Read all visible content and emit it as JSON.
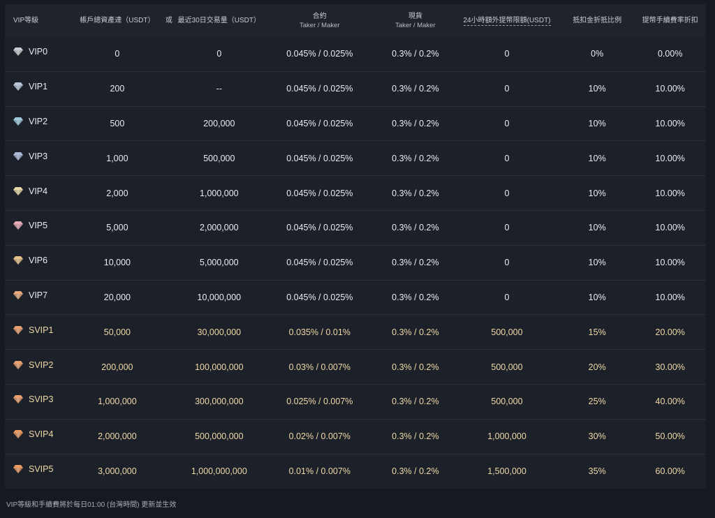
{
  "headers": {
    "level": "VIP等級",
    "assets": "帳戶總資產達（USDT）",
    "or": "或",
    "volume": "最近30日交易量（USDT）",
    "futures": "合約",
    "futures_sub": "Taker / Maker",
    "spot": "現貨",
    "spot_sub": "Taker / Maker",
    "withdraw": "24小時額外提幣限額(USDT)",
    "discount": "抵扣金折抵比例",
    "withdraw_fee": "提幣手續費率折扣"
  },
  "rows": [
    {
      "level": "VIP0",
      "assets": "0",
      "volume": "0",
      "futures": "0.045% / 0.025%",
      "spot": "0.3% / 0.2%",
      "withdraw": "0",
      "discount": "0%",
      "fee": "0.00%",
      "gem": "#c8ccd2",
      "gold": false
    },
    {
      "level": "VIP1",
      "assets": "200",
      "volume": "--",
      "futures": "0.045% / 0.025%",
      "spot": "0.3% / 0.2%",
      "withdraw": "0",
      "discount": "10%",
      "fee": "10.00%",
      "gem": "#b9c6d8",
      "gold": false
    },
    {
      "level": "VIP2",
      "assets": "500",
      "volume": "200,000",
      "futures": "0.045% / 0.025%",
      "spot": "0.3% / 0.2%",
      "withdraw": "0",
      "discount": "10%",
      "fee": "10.00%",
      "gem": "#9ec9dc",
      "gold": false
    },
    {
      "level": "VIP3",
      "assets": "1,000",
      "volume": "500,000",
      "futures": "0.045% / 0.025%",
      "spot": "0.3% / 0.2%",
      "withdraw": "0",
      "discount": "10%",
      "fee": "10.00%",
      "gem": "#a9b8d6",
      "gold": false
    },
    {
      "level": "VIP4",
      "assets": "2,000",
      "volume": "1,000,000",
      "futures": "0.045% / 0.025%",
      "spot": "0.3% / 0.2%",
      "withdraw": "0",
      "discount": "10%",
      "fee": "10.00%",
      "gem": "#e8d8a8",
      "gold": false
    },
    {
      "level": "VIP5",
      "assets": "5,000",
      "volume": "2,000,000",
      "futures": "0.045% / 0.025%",
      "spot": "0.3% / 0.2%",
      "withdraw": "0",
      "discount": "10%",
      "fee": "10.00%",
      "gem": "#e6a9b6",
      "gold": false
    },
    {
      "level": "VIP6",
      "assets": "10,000",
      "volume": "5,000,000",
      "futures": "0.045% / 0.025%",
      "spot": "0.3% / 0.2%",
      "withdraw": "0",
      "discount": "10%",
      "fee": "10.00%",
      "gem": "#e6c08a",
      "gold": false
    },
    {
      "level": "VIP7",
      "assets": "20,000",
      "volume": "10,000,000",
      "futures": "0.045% / 0.025%",
      "spot": "0.3% / 0.2%",
      "withdraw": "0",
      "discount": "10%",
      "fee": "10.00%",
      "gem": "#e8a87c",
      "gold": false
    },
    {
      "level": "SVIP1",
      "assets": "50,000",
      "volume": "30,000,000",
      "futures": "0.035% / 0.01%",
      "spot": "0.3% / 0.2%",
      "withdraw": "500,000",
      "discount": "15%",
      "fee": "20.00%",
      "gem": "#e8a070",
      "gold": true
    },
    {
      "level": "SVIP2",
      "assets": "200,000",
      "volume": "100,000,000",
      "futures": "0.03% / 0.007%",
      "spot": "0.3% / 0.2%",
      "withdraw": "500,000",
      "discount": "20%",
      "fee": "30.00%",
      "gem": "#e8a070",
      "gold": true
    },
    {
      "level": "SVIP3",
      "assets": "1,000,000",
      "volume": "300,000,000",
      "futures": "0.025% / 0.007%",
      "spot": "0.3% / 0.2%",
      "withdraw": "500,000",
      "discount": "25%",
      "fee": "40.00%",
      "gem": "#e8a070",
      "gold": true
    },
    {
      "level": "SVIP4",
      "assets": "2,000,000",
      "volume": "500,000,000",
      "futures": "0.02% / 0.007%",
      "spot": "0.3% / 0.2%",
      "withdraw": "1,000,000",
      "discount": "30%",
      "fee": "50.00%",
      "gem": "#e89a62",
      "gold": true
    },
    {
      "level": "SVIP5",
      "assets": "3,000,000",
      "volume": "1,000,000,000",
      "futures": "0.01% / 0.007%",
      "spot": "0.3% / 0.2%",
      "withdraw": "1,500,000",
      "discount": "35%",
      "fee": "60.00%",
      "gem": "#e89a62",
      "gold": true
    }
  ],
  "footnote": "VIP等級和手續費將於每日01:00 (台灣時間) 更新並生效"
}
